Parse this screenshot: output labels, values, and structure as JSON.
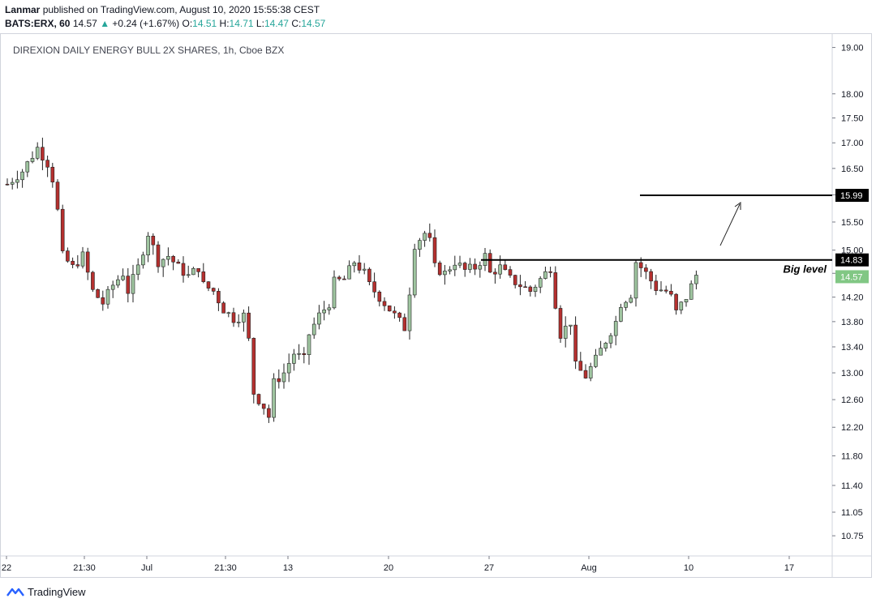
{
  "header": {
    "author": "Lanmar",
    "published_text": "published on TradingView.com, August 10, 2020 15:55:38 CEST",
    "symbol": "BATS:ERX, 60",
    "last": "14.57",
    "change": "+0.24 (+1.67%)",
    "o_label": "O:",
    "o_value": "14.51",
    "h_label": "H:",
    "h_value": "14.71",
    "l_label": "L:",
    "l_value": "14.47",
    "c_label": "C:",
    "c_value": "14.57"
  },
  "chart_title": "DIREXION DAILY ENERGY BULL 2X SHARES, 1h, Cboe BZX",
  "footer": {
    "brand": "TradingView"
  },
  "colors": {
    "up": "#26a69a",
    "down": "#ef5350",
    "candle_up": "#9fc5a0",
    "candle_down": "#b5302f",
    "line": "#000000",
    "price_tag": "#81c784"
  },
  "chart_data": {
    "type": "candlestick",
    "x_tick_labels": [
      "22",
      "21:30",
      "Jul",
      "21:30",
      "13",
      "20",
      "27",
      "Aug",
      "10",
      "17"
    ],
    "y_tick_labels": [
      "19.00",
      "18.00",
      "17.50",
      "17.00",
      "16.50",
      "16.00",
      "15.50",
      "15.00",
      "14.60",
      "14.20",
      "13.80",
      "13.40",
      "13.00",
      "12.60",
      "12.20",
      "11.80",
      "11.40",
      "11.05",
      "10.75"
    ],
    "y_scale": "log",
    "ylim": [
      10.5,
      19.3
    ],
    "horizontal_levels": [
      {
        "price": 15.99,
        "label": "15.99"
      },
      {
        "price": 14.83,
        "label": "14.83",
        "annotation": "Big level"
      }
    ],
    "last_price": {
      "value": 14.57,
      "label": "14.57"
    },
    "close_path": [
      [
        0,
        16.2
      ],
      [
        3,
        16.45
      ],
      [
        6,
        16.9
      ],
      [
        8,
        16.6
      ],
      [
        9,
        16.3
      ],
      [
        10,
        15.7
      ],
      [
        11,
        14.9
      ],
      [
        13,
        14.7
      ],
      [
        15,
        14.9
      ],
      [
        17,
        14.3
      ],
      [
        19,
        14.1
      ],
      [
        21,
        14.4
      ],
      [
        23,
        14.6
      ],
      [
        24,
        14.3
      ],
      [
        26,
        14.7
      ],
      [
        28,
        15.3
      ],
      [
        30,
        14.8
      ],
      [
        32,
        14.9
      ],
      [
        34,
        14.7
      ],
      [
        36,
        14.55
      ],
      [
        38,
        14.7
      ],
      [
        39,
        14.4
      ],
      [
        41,
        14.3
      ],
      [
        43,
        14.0
      ],
      [
        45,
        13.85
      ],
      [
        47,
        13.9
      ],
      [
        48,
        13.5
      ],
      [
        49,
        12.7
      ],
      [
        51,
        12.5
      ],
      [
        52,
        12.35
      ],
      [
        53,
        12.85
      ],
      [
        55,
        13.0
      ],
      [
        57,
        13.3
      ],
      [
        59,
        13.2
      ],
      [
        60,
        13.6
      ],
      [
        62,
        13.9
      ],
      [
        64,
        14.1
      ],
      [
        65,
        14.45
      ],
      [
        67,
        14.5
      ],
      [
        69,
        14.8
      ],
      [
        71,
        14.6
      ],
      [
        72,
        14.4
      ],
      [
        74,
        14.2
      ],
      [
        76,
        14.0
      ],
      [
        78,
        13.8
      ],
      [
        79,
        13.7
      ],
      [
        80,
        14.3
      ],
      [
        81,
        15.1
      ],
      [
        83,
        15.3
      ],
      [
        84,
        15.15
      ],
      [
        85,
        14.7
      ],
      [
        87,
        14.6
      ],
      [
        89,
        14.8
      ],
      [
        91,
        14.65
      ],
      [
        93,
        14.7
      ],
      [
        95,
        14.9
      ],
      [
        96,
        14.6
      ],
      [
        98,
        14.7
      ],
      [
        100,
        14.5
      ],
      [
        102,
        14.4
      ],
      [
        104,
        14.3
      ],
      [
        106,
        14.5
      ],
      [
        108,
        14.7
      ],
      [
        109,
        14.1
      ],
      [
        110,
        13.6
      ],
      [
        112,
        13.8
      ],
      [
        113,
        13.1
      ],
      [
        115,
        12.95
      ],
      [
        117,
        13.2
      ],
      [
        119,
        13.5
      ],
      [
        121,
        13.8
      ],
      [
        122,
        14.1
      ],
      [
        124,
        14.25
      ],
      [
        125,
        14.8
      ],
      [
        127,
        14.6
      ],
      [
        129,
        14.35
      ],
      [
        131,
        14.3
      ],
      [
        132,
        14.2
      ],
      [
        133,
        13.95
      ],
      [
        135,
        14.2
      ],
      [
        137,
        14.57
      ]
    ]
  }
}
